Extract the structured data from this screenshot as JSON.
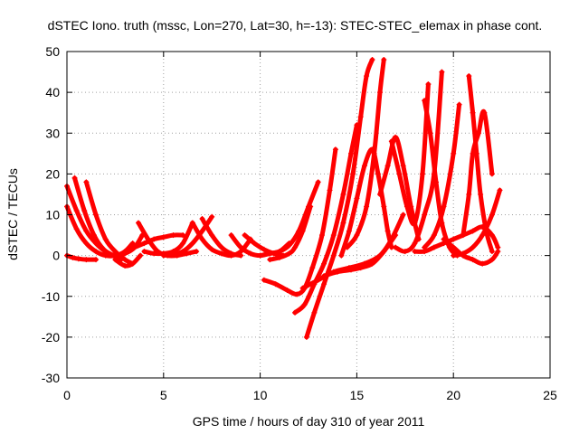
{
  "chart_data": {
    "type": "line",
    "title": "dSTEC Iono. truth (mssc, Lon=270, Lat=30, h=-13): STEC-STEC_elemax in phase cont.",
    "xlabel": "GPS time / hours of day 310 of year 2011",
    "ylabel": "dSTEC  / TECUs",
    "xlim": [
      0,
      25
    ],
    "ylim": [
      -30,
      50
    ],
    "x_ticks": [
      0,
      5,
      10,
      15,
      20,
      25
    ],
    "y_ticks": [
      -30,
      -20,
      -10,
      0,
      10,
      20,
      30,
      40,
      50
    ],
    "x_tick_labels": [
      "0",
      "5",
      "10",
      "15",
      "20",
      "25"
    ],
    "y_tick_labels": [
      "-30",
      "-20",
      "-10",
      "0",
      "10",
      "20",
      "30",
      "40",
      "50"
    ],
    "grid": true,
    "legend": "none",
    "marker": "plus",
    "color": "#ff0000",
    "series": [
      {
        "x": [
          0,
          0.5,
          1,
          1.5,
          2,
          2.5,
          3,
          3.5,
          3.9
        ],
        "y": [
          17,
          11,
          6,
          3,
          1,
          0,
          0.5,
          2,
          5
        ]
      },
      {
        "x": [
          0,
          0.5,
          1,
          1.5,
          2,
          2.5,
          3,
          3.4
        ],
        "y": [
          12,
          6.5,
          3,
          1,
          0,
          0,
          1,
          3
        ]
      },
      {
        "x": [
          0.4,
          0.9,
          1.4,
          1.9,
          2.4,
          2.8
        ],
        "y": [
          19,
          11,
          5,
          1.5,
          0,
          -1
        ]
      },
      {
        "x": [
          1,
          1.5,
          2,
          2.5,
          3,
          3.4
        ],
        "y": [
          18,
          10,
          4,
          1,
          -1,
          -2
        ]
      },
      {
        "x": [
          0,
          0.3,
          0.6,
          1,
          1.5
        ],
        "y": [
          0,
          -0.5,
          -0.8,
          -1,
          -1
        ]
      },
      {
        "x": [
          2.5,
          3,
          3.4,
          3.8
        ],
        "y": [
          -1,
          -2.5,
          -2,
          0
        ]
      },
      {
        "x": [
          3.7,
          4.2,
          4.7,
          5.2,
          5.7,
          6.2,
          6.7
        ],
        "y": [
          8,
          4,
          1,
          0,
          0,
          0.5,
          1
        ]
      },
      {
        "x": [
          3,
          3.5,
          4,
          4.5,
          5,
          5.5,
          6
        ],
        "y": [
          1,
          2,
          3,
          4,
          4.5,
          5,
          5
        ]
      },
      {
        "x": [
          5,
          5.5,
          6,
          6.5,
          7,
          7.5
        ],
        "y": [
          0,
          0.3,
          1,
          3,
          6,
          9.5
        ]
      },
      {
        "x": [
          4,
          4.5,
          5,
          5.5,
          6,
          6.5
        ],
        "y": [
          1,
          0.5,
          0.5,
          1,
          3,
          8
        ]
      },
      {
        "x": [
          6.5,
          7,
          7.5,
          8,
          8.5,
          9,
          9.5
        ],
        "y": [
          8,
          4,
          1.5,
          0.5,
          0,
          1,
          4
        ]
      },
      {
        "x": [
          7,
          7.5,
          8,
          8.5,
          9
        ],
        "y": [
          9,
          5,
          2,
          0.5,
          0
        ]
      },
      {
        "x": [
          8.5,
          9,
          9.5,
          10,
          10.5,
          11,
          11.5
        ],
        "y": [
          5,
          2,
          0.5,
          0,
          0.5,
          1,
          3
        ]
      },
      {
        "x": [
          9.2,
          9.7,
          10.2,
          10.7,
          11.2
        ],
        "y": [
          5,
          3,
          1.5,
          0.5,
          0
        ]
      },
      {
        "x": [
          10,
          10.5,
          11,
          11.5,
          12,
          12.5,
          13
        ],
        "y": [
          0,
          0.5,
          1,
          2.5,
          6,
          12,
          18
        ]
      },
      {
        "x": [
          10.5,
          11,
          11.5,
          11.8,
          12.2,
          12.6
        ],
        "y": [
          -1,
          -0.5,
          0.5,
          2,
          6,
          12
        ]
      },
      {
        "x": [
          10.2,
          10.8,
          11.4,
          11.9,
          12.3,
          12.7,
          13.2,
          13.6,
          13.9
        ],
        "y": [
          -6,
          -7,
          -8.5,
          -9.5,
          -8,
          -3,
          5,
          16,
          26
        ]
      },
      {
        "x": [
          11.8,
          12.3,
          12.8,
          13.3,
          13.8,
          14.3,
          14.7,
          15
        ],
        "y": [
          -14,
          -12,
          -7,
          -2,
          5,
          15,
          25,
          32
        ]
      },
      {
        "x": [
          12.4,
          12.8,
          13.3,
          13.8,
          14.3,
          14.8,
          15.2,
          15.5,
          15.8
        ],
        "y": [
          -20,
          -14,
          -7,
          0,
          8,
          20,
          34,
          44,
          48
        ]
      },
      {
        "x": [
          14.2,
          14.6,
          15,
          15.4,
          15.8,
          16.1,
          16.4,
          16.6,
          16.8
        ],
        "y": [
          0,
          6,
          14,
          22,
          26,
          20,
          12,
          6,
          2
        ]
      },
      {
        "x": [
          14.5,
          15,
          15.5,
          15.9,
          16.2,
          16.4
        ],
        "y": [
          2,
          5,
          12,
          25,
          40,
          48
        ]
      },
      {
        "x": [
          12.2,
          13,
          13.8,
          14.6,
          15.4,
          16.2,
          16.8,
          17.4
        ],
        "y": [
          -8,
          -6,
          -4,
          -3,
          -2,
          0,
          4,
          10
        ]
      },
      {
        "x": [
          13.3,
          14,
          14.7,
          15.2,
          15.8,
          16.4,
          17
        ],
        "y": [
          -5,
          -4,
          -3.5,
          -3,
          -2,
          1,
          5
        ]
      },
      {
        "x": [
          16.2,
          16.6,
          17,
          17.4,
          17.8,
          18.2
        ],
        "y": [
          15,
          22,
          29,
          22,
          12,
          4
        ]
      },
      {
        "x": [
          16.8,
          17.2,
          17.6,
          18,
          18.4,
          18.7
        ],
        "y": [
          28,
          20,
          12,
          8,
          20,
          42
        ]
      },
      {
        "x": [
          17,
          17.5,
          18,
          18.5,
          19,
          19.4
        ],
        "y": [
          2,
          1,
          3,
          10,
          20,
          45
        ]
      },
      {
        "x": [
          18.5,
          18.8,
          19.1,
          19.4,
          19.8,
          20.2
        ],
        "y": [
          38,
          30,
          18,
          8,
          2,
          0
        ]
      },
      {
        "x": [
          18.5,
          19,
          19.5,
          20,
          20.3
        ],
        "y": [
          2,
          5,
          12,
          25,
          37
        ]
      },
      {
        "x": [
          20.8,
          21,
          21.2,
          21.4,
          21.7,
          22
        ],
        "y": [
          44,
          35,
          25,
          15,
          6,
          1
        ]
      },
      {
        "x": [
          20.5,
          20.8,
          21,
          21.3,
          21.6,
          22
        ],
        "y": [
          5,
          15,
          25,
          30,
          35,
          20
        ]
      },
      {
        "x": [
          20,
          20.5,
          21,
          21.5,
          22,
          22.4
        ],
        "y": [
          0,
          0.5,
          2,
          5,
          10,
          16
        ]
      },
      {
        "x": [
          18,
          18.5,
          19,
          19.5,
          20,
          20.5,
          21,
          21.5,
          22,
          22.3
        ],
        "y": [
          1,
          1,
          2,
          3,
          4,
          5,
          6,
          7,
          5,
          2
        ]
      },
      {
        "x": [
          19.5,
          20,
          20.5,
          21,
          21.5,
          22,
          22.3
        ],
        "y": [
          4,
          2,
          0,
          -1,
          -2,
          -1,
          1
        ]
      }
    ]
  }
}
